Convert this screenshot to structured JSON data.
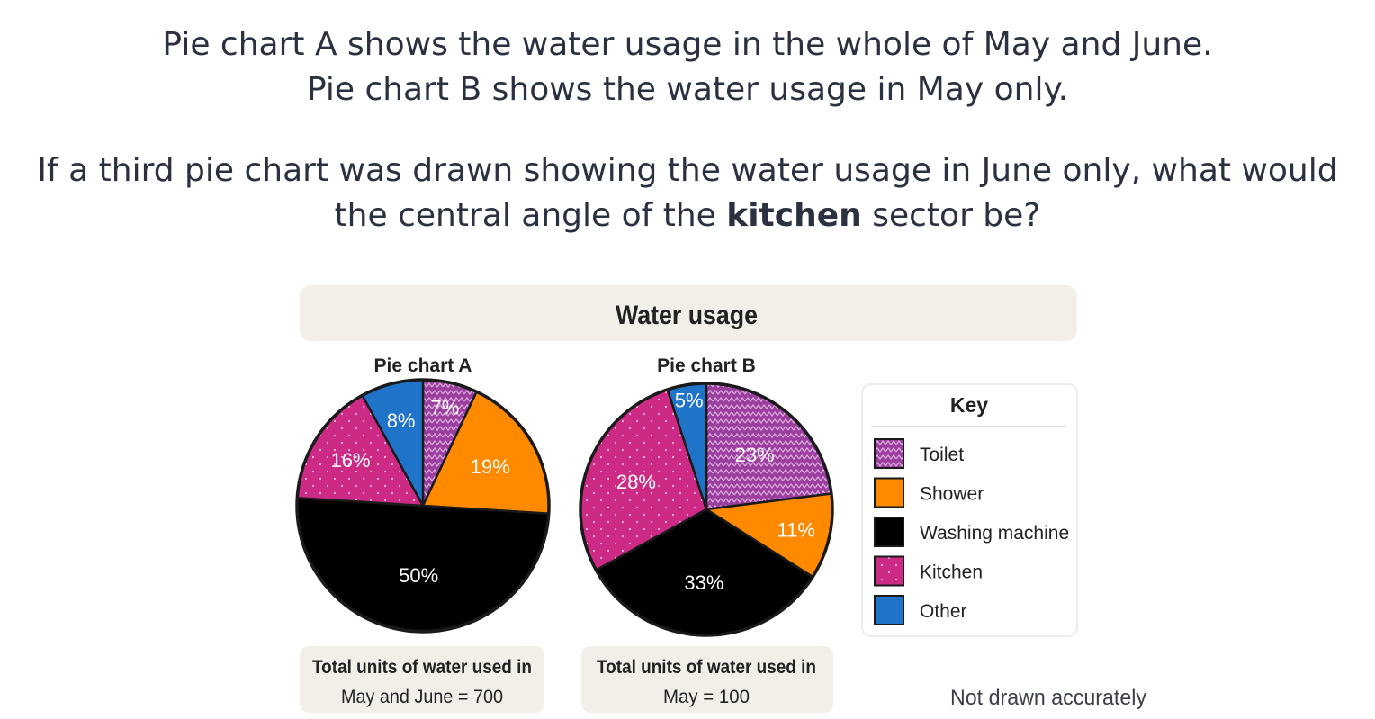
{
  "question": {
    "line1": "Pie chart A shows the water usage in the whole of May and June.",
    "line2": "Pie chart B shows the water usage in May only.",
    "line3": "If a third pie chart was drawn showing the water usage in June only, what would",
    "line4_prefix": "the central angle of the ",
    "line4_bold": "kitchen",
    "line4_suffix": " sector be?"
  },
  "figure": {
    "title": "Water usage",
    "note": "Not drawn accurately",
    "key_title": "Key"
  },
  "colors": {
    "Toilet": "#9a3f9e",
    "Shower": "#ff8a00",
    "Washing machine": "#3a8f1d",
    "Kitchen": "#cc2a85",
    "Other": "#1f73c8"
  },
  "chart_data": [
    {
      "type": "pie",
      "title": "Pie chart A",
      "labels": [
        "Toilet",
        "Shower",
        "Washing machine",
        "Kitchen",
        "Other"
      ],
      "values": [
        7,
        19,
        50,
        16,
        8
      ],
      "value_labels": [
        "7%",
        "19%",
        "50%",
        "16%",
        "8%"
      ],
      "caption_line1": "Total units of water used in",
      "caption_line2": "May and June = 700"
    },
    {
      "type": "pie",
      "title": "Pie chart B",
      "labels": [
        "Toilet",
        "Shower",
        "Washing machine",
        "Kitchen",
        "Other"
      ],
      "values": [
        23,
        11,
        33,
        28,
        5
      ],
      "value_labels": [
        "23%",
        "11%",
        "33%",
        "28%",
        "5%"
      ],
      "caption_line1": "Total units of water used in",
      "caption_line2": "May = 100"
    }
  ]
}
